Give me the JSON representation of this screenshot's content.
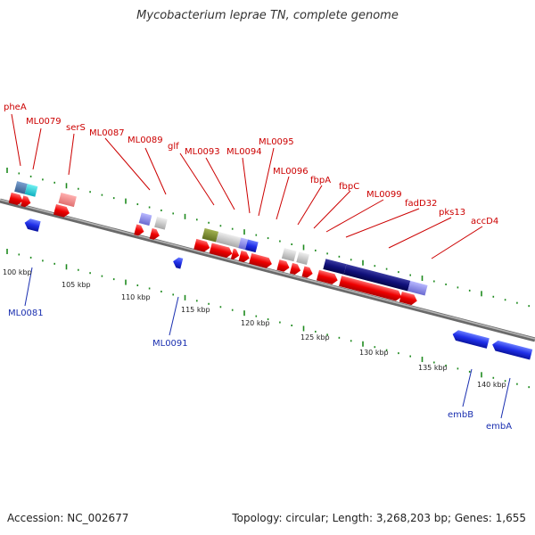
{
  "title": "Mycobacterium leprae TN, complete genome",
  "accession": "Accession: NC_002677",
  "topology": "Topology: circular; Length: 3,268,203 bp; Genes: 1,655",
  "colors": {
    "backbone": "#888888",
    "forward_label": "#cc0000",
    "reverse_label": "#1a2fb0",
    "tick": "#1e8a1e",
    "scale_label": "#222222"
  },
  "scale_ticks": [
    "100 kbp",
    "105 kbp",
    "110 kbp",
    "115 kbp",
    "120 kbp",
    "125 kbp",
    "130 kbp",
    "135 kbp",
    "140 kbp"
  ],
  "forward_labels": [
    "pheA",
    "ML0079",
    "serS",
    "ML0087",
    "ML0089",
    "glf",
    "ML0093",
    "ML0094",
    "ML0095",
    "ML0096",
    "fbpA",
    "fbpC",
    "ML0099",
    "fadD32",
    "pks13",
    "accD4"
  ],
  "reverse_labels": [
    "ML0081",
    "ML0091",
    "embB",
    "embA"
  ]
}
